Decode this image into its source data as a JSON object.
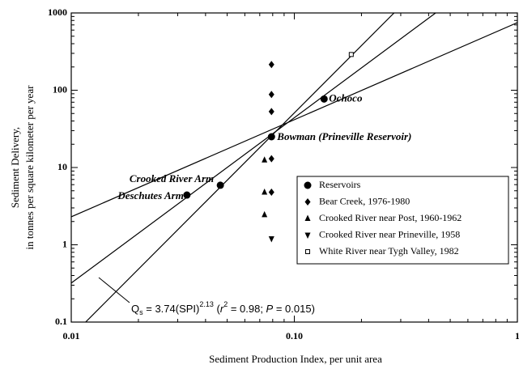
{
  "chart_data": {
    "type": "scatter",
    "x_label": "Sediment Production Index, per unit area",
    "y_label": [
      "Sediment Delivery,",
      "in tonnes per square kilometer per year"
    ],
    "xlim": [
      0.01,
      1
    ],
    "ylim": [
      0.1,
      1000
    ],
    "log_x": true,
    "log_y": true,
    "xticks": [
      0.01,
      {
        "value": 0.1,
        "label": "0.10"
      },
      1
    ],
    "yticks": [
      1000,
      100,
      10,
      1,
      0.1
    ],
    "legend": "lower right",
    "series": [
      {
        "name": "Reservoirs",
        "marker": "circle",
        "color": "#000000",
        "x": [
          0.033,
          0.0466,
          0.079,
          0.136
        ],
        "values": [
          4.4,
          5.9,
          25,
          77
        ],
        "point_labels": [
          "Deschutes Arm",
          "Crooked River Arm",
          "Bowman (Prineville Reservoir)",
          "Ochoco"
        ]
      },
      {
        "name": "Bear Creek, 1976-1980",
        "marker": "diamond",
        "color": "#000000",
        "x": [
          0.079,
          0.079,
          0.079,
          0.079,
          0.079
        ],
        "values": [
          215,
          88,
          53,
          13,
          4.8
        ]
      },
      {
        "name": "Crooked River near Post, 1960-1962",
        "marker": "triangle",
        "color": "#000000",
        "x": [
          0.0735,
          0.0735,
          0.0735
        ],
        "values": [
          12.5,
          4.8,
          2.45
        ]
      },
      {
        "name": "Crooked River near Prineville, 1958",
        "marker": "triangle-down",
        "color": "#000000",
        "x": [
          0.079
        ],
        "values": [
          1.2
        ]
      },
      {
        "name": "White River near Tygh Valley, 1982",
        "marker": "square-open",
        "color": "#000000",
        "x": [
          0.18
        ],
        "values": [
          290
        ]
      }
    ],
    "lines": [
      {
        "x": [
          0.01,
          1
        ],
        "values": [
          2.3,
          750
        ]
      },
      {
        "x": [
          0.01,
          0.43
        ],
        "values": [
          0.32,
          1000
        ]
      },
      {
        "x": [
          0.0116,
          0.28
        ],
        "values": [
          0.1,
          1000
        ]
      }
    ],
    "equation": [
      "Q",
      "s",
      " = 3.74(SPI)",
      "2.13",
      " (",
      "r",
      "2",
      " = 0.98; ",
      "P",
      " = 0.015)"
    ]
  }
}
